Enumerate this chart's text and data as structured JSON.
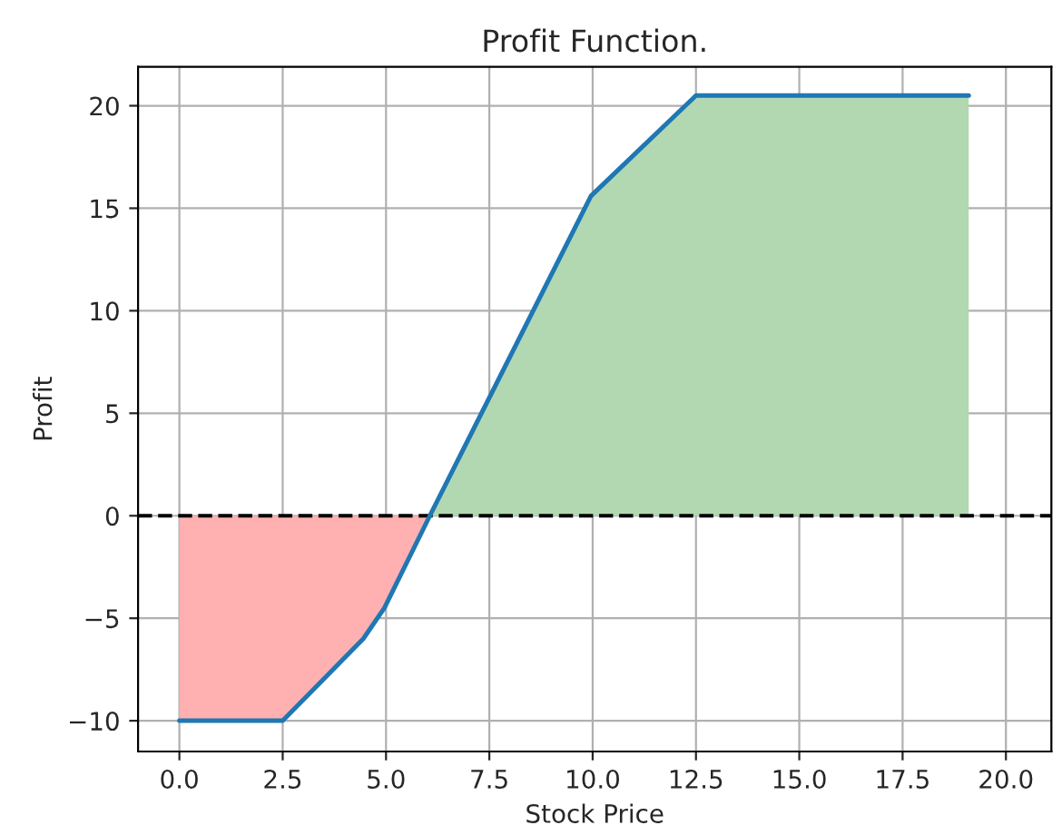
{
  "chart_data": {
    "type": "line",
    "title": "Profit Function.",
    "xlabel": "Stock Price",
    "ylabel": "Profit",
    "xlim": [
      -1.0,
      21.1
    ],
    "ylim": [
      -11.5,
      21.9
    ],
    "xticks": [
      {
        "value": 0,
        "label": "0.0"
      },
      {
        "value": 2.5,
        "label": "2.5"
      },
      {
        "value": 5,
        "label": "5.0"
      },
      {
        "value": 7.5,
        "label": "7.5"
      },
      {
        "value": 10,
        "label": "10.0"
      },
      {
        "value": 12.5,
        "label": "12.5"
      },
      {
        "value": 15,
        "label": "15.0"
      },
      {
        "value": 17.5,
        "label": "17.5"
      },
      {
        "value": 20,
        "label": "20.0"
      }
    ],
    "yticks": [
      -10,
      -5,
      0,
      5,
      10,
      15,
      20
    ],
    "grid": true,
    "series": [
      {
        "type": "area",
        "color": "#ffb1b1",
        "x": [
          0,
          2.5,
          4.45,
          4.96,
          6.06
        ],
        "values": [
          -10,
          -10,
          -6,
          -4.5,
          0
        ]
      },
      {
        "type": "area",
        "color": "#b2d8b2",
        "x": [
          6.06,
          9.96,
          12.5,
          19.1
        ],
        "values": [
          0,
          15.6,
          20.5,
          20.5
        ]
      },
      {
        "color": "#1f77b4",
        "x": [
          0,
          2.5,
          4.45,
          4.96,
          6.06,
          9.96,
          12.5,
          19.1
        ],
        "values": [
          -10,
          -10,
          -6,
          -4.5,
          0,
          15.6,
          20.5,
          20.5
        ]
      }
    ],
    "ref_lines": [
      {
        "axis": "y",
        "value": 0,
        "color": "#000000",
        "line_style": "dashed"
      }
    ]
  }
}
